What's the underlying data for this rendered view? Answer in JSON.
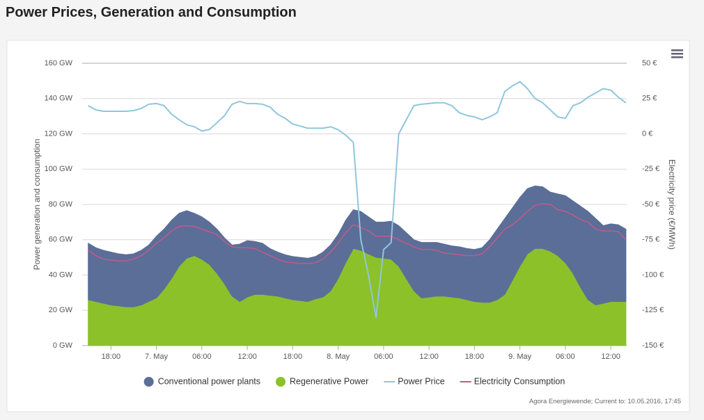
{
  "title": "Power Prices, Generation and Consumption",
  "credit": "Agora Energiewende; Current to: 10.05.2016, 17:45",
  "chart_data": {
    "type": "area",
    "ylabel": "Power generation and consumption",
    "y2label": "Electricity price (€/MWh)",
    "x": [
      15,
      16,
      17,
      18,
      19,
      20,
      21,
      22,
      23,
      24,
      25,
      26,
      27,
      28,
      29,
      30,
      31,
      32,
      33,
      34,
      35,
      36,
      37,
      38,
      39,
      40,
      41,
      42,
      43,
      44,
      45,
      46,
      47,
      48,
      49,
      50,
      51,
      52,
      53,
      54,
      55,
      56,
      57,
      58,
      59,
      60,
      61,
      62,
      63,
      64,
      65,
      66,
      67,
      68,
      69,
      70,
      71,
      72,
      73,
      74,
      75,
      76,
      77,
      78,
      79,
      80,
      81,
      82,
      83,
      84,
      85,
      86
    ],
    "xlim": [
      14.2,
      86.1
    ],
    "xticks": [
      {
        "value": 18,
        "label": "18:00"
      },
      {
        "value": 24,
        "label": "7. May"
      },
      {
        "value": 30,
        "label": "06:00"
      },
      {
        "value": 36,
        "label": "12:00"
      },
      {
        "value": 42,
        "label": "18:00"
      },
      {
        "value": 48,
        "label": "8. May"
      },
      {
        "value": 54,
        "label": "06:00"
      },
      {
        "value": 60,
        "label": "12:00"
      },
      {
        "value": 66,
        "label": "18:00"
      },
      {
        "value": 72,
        "label": "9. May"
      },
      {
        "value": 78,
        "label": "06:00"
      },
      {
        "value": 84,
        "label": "12:00"
      }
    ],
    "ylim": [
      0,
      160
    ],
    "yticks": [
      {
        "value": 0,
        "label": "0 GW"
      },
      {
        "value": 20,
        "label": "20 GW"
      },
      {
        "value": 40,
        "label": "40 GW"
      },
      {
        "value": 60,
        "label": "60 GW"
      },
      {
        "value": 80,
        "label": "80 GW"
      },
      {
        "value": 100,
        "label": "100 GW"
      },
      {
        "value": 120,
        "label": "120 GW"
      },
      {
        "value": 140,
        "label": "140 GW"
      },
      {
        "value": 160,
        "label": "160 GW"
      }
    ],
    "y2lim": [
      -150,
      50
    ],
    "y2ticks": [
      {
        "value": -150,
        "label": "-150 €"
      },
      {
        "value": -125,
        "label": "-125 €"
      },
      {
        "value": -100,
        "label": "-100 €"
      },
      {
        "value": -75,
        "label": "-75 €"
      },
      {
        "value": -50,
        "label": "-50 €"
      },
      {
        "value": -25,
        "label": "-25 €"
      },
      {
        "value": 0,
        "label": "0 €"
      },
      {
        "value": 25,
        "label": "25 €"
      },
      {
        "value": 50,
        "label": "50 €"
      }
    ],
    "grid": true,
    "legend": "bottom",
    "series": [
      {
        "name": "Conventional power plants",
        "type": "area",
        "stacked": true,
        "color": "#5b6e97",
        "values": [
          32,
          30.5,
          30,
          30,
          29.5,
          29.5,
          30,
          31,
          32,
          35,
          34,
          33,
          30,
          27,
          24,
          24,
          24,
          25,
          26,
          29,
          32.5,
          32,
          30,
          29,
          26.5,
          25,
          24.5,
          24.5,
          24.5,
          24.5,
          24,
          25.5,
          26,
          25,
          24,
          22,
          22,
          21,
          20,
          20.5,
          21.5,
          23,
          26,
          29,
          31.5,
          31,
          30.5,
          29.5,
          29,
          29,
          29,
          29.5,
          31,
          35.5,
          40,
          43,
          41,
          39,
          37,
          35.5,
          35,
          33.5,
          35,
          38,
          41,
          46,
          50,
          49,
          44,
          44,
          43.5,
          41
        ]
      },
      {
        "name": "Regenerative Power",
        "type": "area",
        "stacked": true,
        "color": "#8cc12a",
        "values": [
          26,
          25,
          24,
          23,
          22.5,
          22,
          22,
          23,
          25,
          27,
          32,
          38,
          45,
          49.5,
          51,
          49,
          46,
          41,
          35,
          28,
          25,
          27.5,
          29,
          29,
          28.5,
          28,
          27,
          26,
          25.5,
          25,
          26.5,
          27.5,
          31,
          38,
          47,
          55,
          54,
          52,
          50,
          49.5,
          49,
          45,
          38,
          31,
          27,
          27.5,
          28,
          28,
          27.5,
          27,
          26,
          25,
          24.5,
          24.5,
          26,
          29,
          37,
          45,
          52,
          55,
          55,
          53.5,
          51,
          47,
          41,
          33,
          26,
          23,
          24,
          25,
          25,
          25
        ]
      },
      {
        "name": "Power Price",
        "type": "line",
        "axis": "y2",
        "color": "#8fc6dd",
        "values": [
          20,
          17,
          16,
          16,
          16,
          16,
          16.5,
          18,
          21,
          21.5,
          20,
          14,
          10,
          6.5,
          5,
          2,
          3,
          8,
          13,
          21,
          23,
          21.5,
          21.5,
          21,
          19,
          14,
          11,
          7,
          5.5,
          4,
          4,
          4,
          5,
          3,
          -1,
          -6,
          -75,
          -100,
          -130,
          -82,
          -77,
          0,
          10,
          20,
          21,
          21.5,
          22,
          22,
          20,
          15,
          13,
          12,
          10,
          12,
          15,
          30,
          34,
          37,
          32,
          25,
          22,
          17,
          12,
          11,
          20,
          22,
          26,
          29,
          32,
          31,
          26,
          22
        ]
      },
      {
        "name": "Electricity Consumption",
        "type": "line",
        "color": "#c35a8c",
        "values": [
          54,
          51,
          49,
          48.5,
          48,
          48,
          49,
          51,
          54,
          58,
          61,
          65,
          67.5,
          68,
          67.5,
          66,
          64.5,
          63,
          59,
          56,
          55.5,
          55.5,
          55,
          53,
          51,
          49,
          47.5,
          47,
          46.5,
          46.5,
          47,
          49,
          53,
          58,
          64,
          68.5,
          67,
          65,
          62,
          62,
          62,
          60,
          58,
          56,
          54.5,
          54.5,
          54,
          52.5,
          52,
          51.5,
          51,
          51,
          52,
          56,
          61,
          66,
          68.5,
          72,
          76,
          79.5,
          80.5,
          80,
          77,
          76,
          74,
          71.5,
          70,
          66,
          65,
          65,
          64.5,
          60
        ]
      }
    ]
  }
}
